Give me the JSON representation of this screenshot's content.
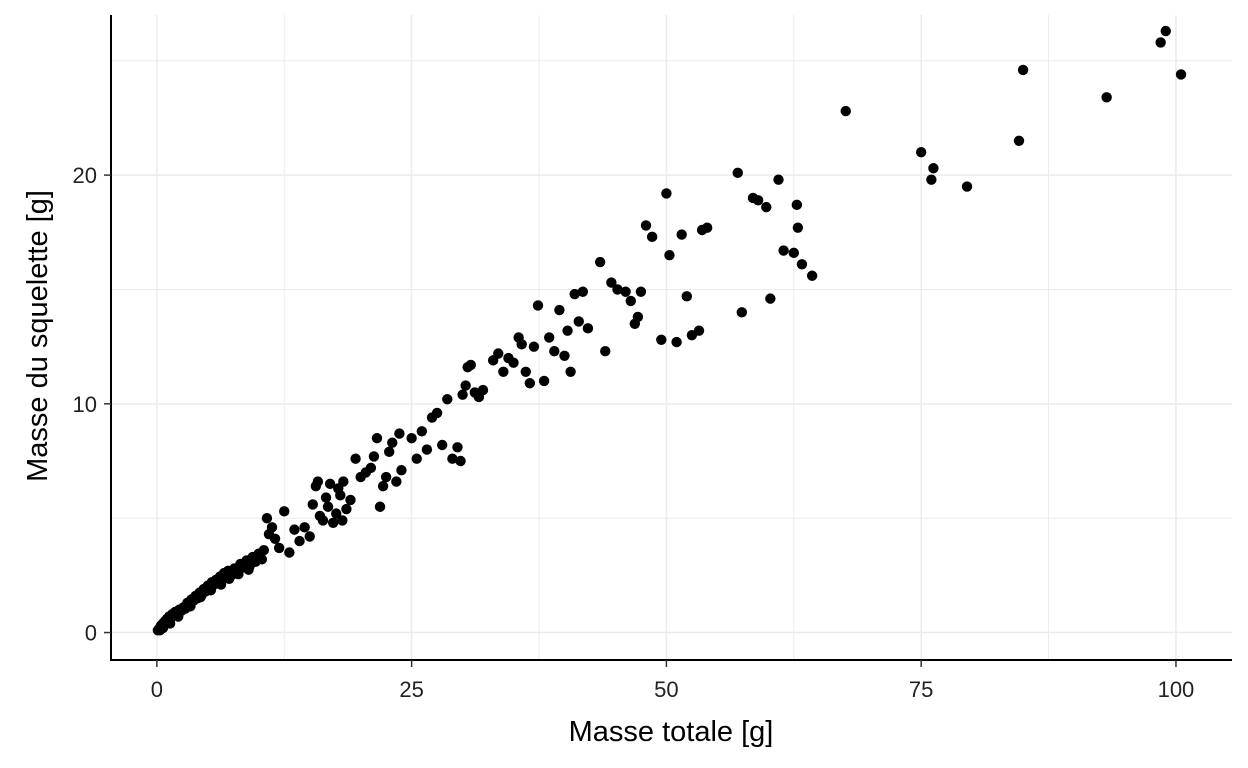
{
  "chart_data": {
    "type": "scatter",
    "title": "",
    "xlabel": "Masse totale [g]",
    "ylabel": "Masse du squelette [g]",
    "xlim": [
      -4.5,
      105.5
    ],
    "ylim": [
      -1.2,
      27.0
    ],
    "x_ticks": [
      {
        "value": 0,
        "label": "0"
      },
      {
        "value": 25,
        "label": "25"
      },
      {
        "value": 50,
        "label": "50"
      },
      {
        "value": 75,
        "label": "75"
      },
      {
        "value": 100,
        "label": "100"
      }
    ],
    "y_ticks": [
      {
        "value": 0,
        "label": "0"
      },
      {
        "value": 10,
        "label": "10"
      },
      {
        "value": 20,
        "label": "20"
      }
    ],
    "grid": true,
    "legend": "none",
    "point_color": "#000000",
    "grid_color": "#ebebeb",
    "points": [
      [
        0.1,
        0.1
      ],
      [
        0.2,
        0.15
      ],
      [
        0.3,
        0.2
      ],
      [
        0.4,
        0.3
      ],
      [
        0.5,
        0.25
      ],
      [
        0.6,
        0.4
      ],
      [
        0.7,
        0.35
      ],
      [
        0.8,
        0.5
      ],
      [
        0.9,
        0.45
      ],
      [
        1.0,
        0.6
      ],
      [
        1.1,
        0.55
      ],
      [
        1.2,
        0.7
      ],
      [
        1.4,
        0.65
      ],
      [
        1.5,
        0.8
      ],
      [
        1.7,
        0.75
      ],
      [
        1.8,
        0.9
      ],
      [
        2.0,
        0.85
      ],
      [
        2.2,
        1.0
      ],
      [
        2.4,
        0.95
      ],
      [
        2.6,
        1.1
      ],
      [
        2.8,
        1.05
      ],
      [
        3.0,
        1.3
      ],
      [
        3.2,
        1.2
      ],
      [
        3.4,
        1.45
      ],
      [
        3.6,
        1.4
      ],
      [
        3.8,
        1.6
      ],
      [
        4.0,
        1.5
      ],
      [
        4.2,
        1.75
      ],
      [
        4.4,
        1.65
      ],
      [
        4.6,
        1.9
      ],
      [
        4.8,
        1.8
      ],
      [
        5.0,
        2.05
      ],
      [
        5.2,
        1.95
      ],
      [
        5.4,
        2.2
      ],
      [
        5.6,
        2.1
      ],
      [
        5.8,
        2.3
      ],
      [
        6.0,
        2.2
      ],
      [
        6.2,
        2.45
      ],
      [
        6.4,
        2.3
      ],
      [
        6.6,
        2.6
      ],
      [
        6.8,
        2.4
      ],
      [
        7.0,
        2.7
      ],
      [
        7.3,
        2.5
      ],
      [
        7.6,
        2.8
      ],
      [
        7.9,
        2.65
      ],
      [
        8.2,
        3.0
      ],
      [
        8.5,
        2.85
      ],
      [
        8.8,
        3.15
      ],
      [
        9.1,
        2.9
      ],
      [
        9.4,
        3.3
      ],
      [
        9.7,
        3.1
      ],
      [
        10.0,
        3.45
      ],
      [
        10.3,
        3.2
      ],
      [
        0.3,
        0.1
      ],
      [
        0.6,
        0.2
      ],
      [
        1.3,
        0.4
      ],
      [
        2.1,
        0.7
      ],
      [
        3.3,
        1.15
      ],
      [
        4.3,
        1.55
      ],
      [
        5.3,
        1.85
      ],
      [
        6.3,
        2.1
      ],
      [
        7.1,
        2.35
      ],
      [
        8.0,
        2.55
      ],
      [
        9.0,
        2.75
      ],
      [
        10.5,
        3.6
      ],
      [
        10.8,
        5.0
      ],
      [
        11.0,
        4.3
      ],
      [
        11.3,
        4.6
      ],
      [
        11.6,
        4.1
      ],
      [
        12.0,
        3.7
      ],
      [
        12.5,
        5.3
      ],
      [
        13.0,
        3.5
      ],
      [
        13.5,
        4.5
      ],
      [
        14.0,
        4.0
      ],
      [
        14.5,
        4.6
      ],
      [
        15.0,
        4.2
      ],
      [
        15.3,
        5.6
      ],
      [
        15.6,
        6.4
      ],
      [
        16.0,
        5.1
      ],
      [
        16.3,
        4.9
      ],
      [
        16.6,
        5.9
      ],
      [
        17.0,
        6.5
      ],
      [
        17.3,
        4.8
      ],
      [
        17.6,
        5.2
      ],
      [
        18.0,
        6.0
      ],
      [
        18.3,
        6.6
      ],
      [
        18.6,
        5.4
      ],
      [
        19.0,
        5.8
      ],
      [
        15.8,
        6.6
      ],
      [
        16.8,
        5.5
      ],
      [
        17.8,
        6.3
      ],
      [
        18.2,
        4.9
      ],
      [
        19.5,
        7.6
      ],
      [
        20.0,
        6.8
      ],
      [
        20.5,
        7.0
      ],
      [
        21.0,
        7.2
      ],
      [
        21.3,
        7.7
      ],
      [
        21.6,
        8.5
      ],
      [
        21.9,
        5.5
      ],
      [
        22.2,
        6.4
      ],
      [
        22.5,
        6.8
      ],
      [
        22.8,
        7.9
      ],
      [
        23.1,
        8.3
      ],
      [
        23.5,
        6.6
      ],
      [
        23.8,
        8.7
      ],
      [
        24.0,
        7.1
      ],
      [
        25.0,
        8.5
      ],
      [
        25.5,
        7.6
      ],
      [
        26.0,
        8.8
      ],
      [
        26.5,
        8.0
      ],
      [
        27.0,
        9.4
      ],
      [
        27.5,
        9.6
      ],
      [
        28.0,
        8.2
      ],
      [
        28.5,
        10.2
      ],
      [
        29.0,
        7.6
      ],
      [
        29.5,
        8.1
      ],
      [
        29.8,
        7.5
      ],
      [
        30.0,
        10.4
      ],
      [
        30.3,
        10.8
      ],
      [
        30.5,
        11.6
      ],
      [
        30.8,
        11.7
      ],
      [
        31.2,
        10.5
      ],
      [
        31.6,
        10.3
      ],
      [
        32.0,
        10.6
      ],
      [
        33.0,
        11.9
      ],
      [
        33.5,
        12.2
      ],
      [
        34.0,
        11.4
      ],
      [
        34.5,
        12.0
      ],
      [
        35.0,
        11.8
      ],
      [
        35.5,
        12.9
      ],
      [
        35.8,
        12.6
      ],
      [
        36.2,
        11.4
      ],
      [
        36.6,
        10.9
      ],
      [
        37.0,
        12.5
      ],
      [
        37.4,
        14.3
      ],
      [
        38.0,
        11.0
      ],
      [
        38.5,
        12.9
      ],
      [
        39.0,
        12.3
      ],
      [
        39.5,
        14.1
      ],
      [
        40.0,
        12.1
      ],
      [
        40.3,
        13.2
      ],
      [
        40.6,
        11.4
      ],
      [
        41.0,
        14.8
      ],
      [
        41.4,
        13.6
      ],
      [
        41.8,
        14.9
      ],
      [
        42.3,
        13.3
      ],
      [
        43.5,
        16.2
      ],
      [
        44.0,
        12.3
      ],
      [
        44.6,
        15.3
      ],
      [
        45.2,
        15.0
      ],
      [
        46.0,
        14.9
      ],
      [
        46.5,
        14.5
      ],
      [
        46.9,
        13.5
      ],
      [
        47.2,
        13.8
      ],
      [
        47.5,
        14.9
      ],
      [
        48.0,
        17.8
      ],
      [
        48.6,
        17.3
      ],
      [
        49.5,
        12.8
      ],
      [
        50.0,
        19.2
      ],
      [
        50.3,
        16.5
      ],
      [
        51.0,
        12.7
      ],
      [
        51.5,
        17.4
      ],
      [
        52.0,
        14.7
      ],
      [
        52.5,
        13.0
      ],
      [
        53.2,
        13.2
      ],
      [
        53.5,
        17.6
      ],
      [
        54.0,
        17.7
      ],
      [
        57.0,
        20.1
      ],
      [
        57.4,
        14.0
      ],
      [
        58.5,
        19.0
      ],
      [
        59.0,
        18.9
      ],
      [
        59.8,
        18.6
      ],
      [
        60.2,
        14.6
      ],
      [
        61.0,
        19.8
      ],
      [
        61.5,
        16.7
      ],
      [
        62.5,
        16.6
      ],
      [
        62.8,
        18.7
      ],
      [
        62.9,
        17.7
      ],
      [
        63.3,
        16.1
      ],
      [
        64.3,
        15.6
      ],
      [
        67.6,
        22.8
      ],
      [
        75.0,
        21.0
      ],
      [
        76.0,
        19.8
      ],
      [
        76.2,
        20.3
      ],
      [
        79.5,
        19.5
      ],
      [
        84.6,
        21.5
      ],
      [
        85.0,
        24.6
      ],
      [
        93.2,
        23.4
      ],
      [
        98.5,
        25.8
      ],
      [
        99.0,
        26.3
      ],
      [
        100.5,
        24.4
      ]
    ]
  }
}
